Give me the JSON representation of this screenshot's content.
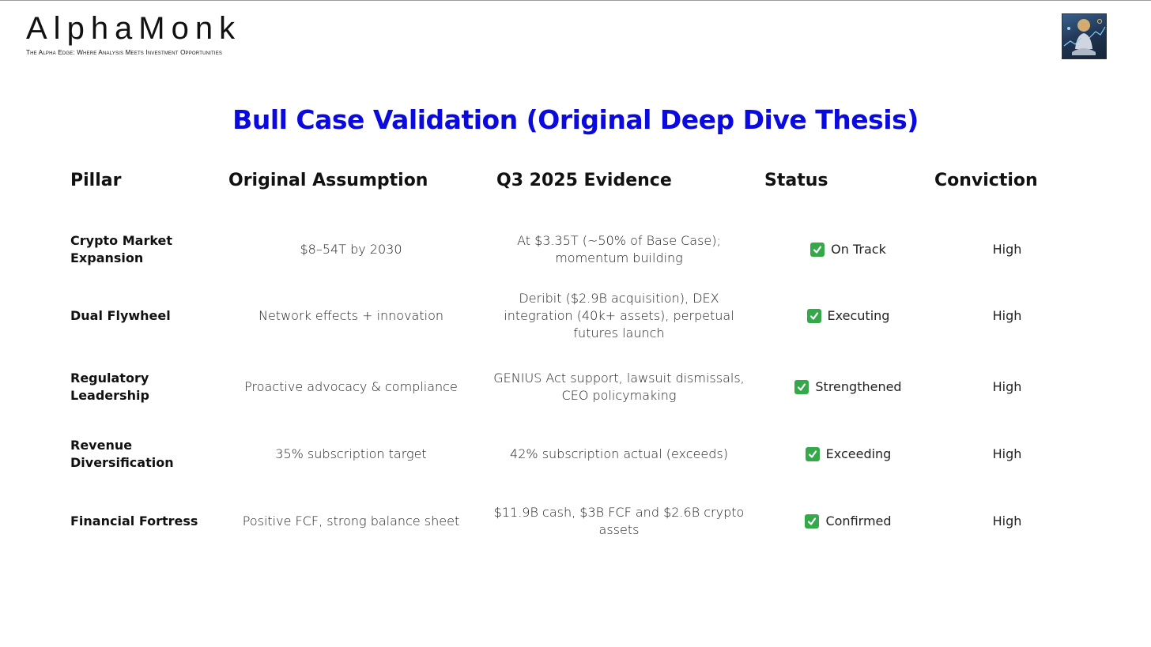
{
  "brand": {
    "name": "AlphaMonk",
    "tagline": "The Alpha Edge: Where Analysis Meets Investment Opportunities"
  },
  "title": "Bull Case Validation (Original Deep Dive Thesis)",
  "colors": {
    "title": "#0a0adf",
    "check": "#35a84a"
  },
  "table": {
    "headers": {
      "pillar": "Pillar",
      "assumption": "Original Assumption",
      "evidence": "Q3 2025 Evidence",
      "status": "Status",
      "conviction": "Conviction"
    },
    "rows": [
      {
        "pillar": "Crypto Market Expansion",
        "assumption": "$8–54T by 2030",
        "evidence": "At $3.35T (~50% of Base Case); momentum building",
        "status": "On Track",
        "status_icon": "check-mark-icon",
        "conviction": "High"
      },
      {
        "pillar": "Dual Flywheel",
        "assumption": "Network effects + innovation",
        "evidence": "Deribit ($2.9B acquisition), DEX integration (40k+ assets), perpetual futures launch",
        "status": "Executing",
        "status_icon": "check-mark-icon",
        "conviction": "High"
      },
      {
        "pillar": "Regulatory Leadership",
        "assumption": "Proactive advocacy & compliance",
        "evidence": "GENIUS Act support, lawsuit dismissals, CEO policymaking",
        "status": "Strengthened",
        "status_icon": "check-mark-icon",
        "conviction": "High"
      },
      {
        "pillar": "Revenue Diversification",
        "assumption": "35% subscription target",
        "evidence": "42% subscription actual (exceeds)",
        "status": "Exceeding",
        "status_icon": "check-mark-icon",
        "conviction": "High"
      },
      {
        "pillar": "Financial Fortress",
        "assumption": "Positive FCF, strong balance sheet",
        "evidence": "$11.9B cash, $3B FCF and $2.6B crypto assets",
        "status": "Confirmed",
        "status_icon": "check-mark-icon",
        "conviction": "High"
      }
    ]
  }
}
